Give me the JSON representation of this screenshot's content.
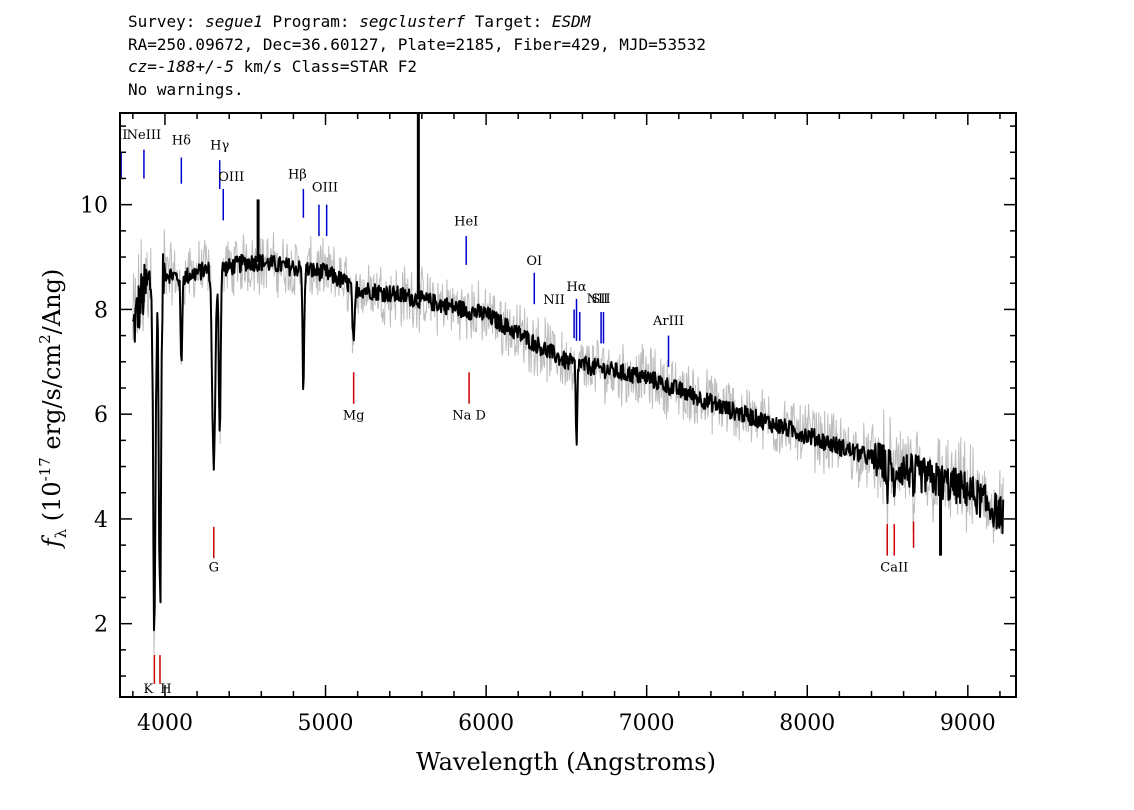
{
  "header": {
    "line1": {
      "survey_label": "Survey: ",
      "survey": "segue1",
      "program_label": " Program: ",
      "program": "segclusterf",
      "target_label": " Target: ",
      "target": "ESDM"
    },
    "line2": "RA=250.09672, Dec=36.60127, Plate=2185, Fiber=429, MJD=53532",
    "line3": {
      "cz_label": "cz=",
      "cz_value": "-188+/-5",
      "rest": " km/s Class=STAR F2"
    },
    "line4": "No warnings."
  },
  "chart_data": {
    "type": "line",
    "title": "",
    "xlabel": "Wavelength (Angstroms)",
    "ylabel_parts": {
      "f": "f",
      "sub": "λ",
      "open": " (10",
      "exp": "-17",
      "mid": " erg/s/cm",
      "exp2": "2",
      "close": "/Ang)"
    },
    "xlim": [
      3720,
      9300
    ],
    "ylim": [
      0.6,
      11.75
    ],
    "xticks": [
      4000,
      5000,
      6000,
      7000,
      8000,
      9000
    ],
    "xtick_labels": [
      "4000",
      "5000",
      "6000",
      "7000",
      "8000",
      "9000"
    ],
    "yticks": [
      2,
      4,
      6,
      8,
      10
    ],
    "ytick_labels": [
      "2",
      "4",
      "6",
      "8",
      "10"
    ],
    "colors": {
      "flux": "#000000",
      "error_band": "#bdbdbd",
      "emission": "#0000cc",
      "absorption": "#cc0000"
    },
    "continuum_x": [
      3800,
      3850,
      3900,
      4000,
      4100,
      4200,
      4300,
      4400,
      4500,
      4600,
      4800,
      5000,
      5200,
      5500,
      6000,
      6500,
      7000,
      7500,
      8000,
      8500,
      9000,
      9220
    ],
    "continuum_y": [
      7.6,
      8.2,
      8.5,
      8.7,
      8.6,
      8.7,
      8.8,
      8.8,
      8.9,
      8.9,
      8.8,
      8.7,
      8.4,
      8.25,
      7.9,
      7.0,
      6.7,
      6.1,
      5.6,
      5.05,
      4.55,
      4.05
    ],
    "absorption_features": [
      {
        "name": "CaII K",
        "wave": 3934,
        "min": 1.7,
        "width": 10
      },
      {
        "name": "CaII H",
        "wave": 3969,
        "min": 2.4,
        "width": 10
      },
      {
        "name": "Hdelta",
        "wave": 4102,
        "min": 6.9,
        "width": 7
      },
      {
        "name": "G band",
        "wave": 4304,
        "min": 5.0,
        "width": 14
      },
      {
        "name": "Hgamma",
        "wave": 4341,
        "min": 5.6,
        "width": 8
      },
      {
        "name": "Hbeta",
        "wave": 4862,
        "min": 6.4,
        "width": 7
      },
      {
        "name": "Mg",
        "wave": 5175,
        "min": 7.3,
        "width": 10
      },
      {
        "name": "Halpha",
        "wave": 6563,
        "min": 5.3,
        "width": 6
      },
      {
        "name": "CaII 8498",
        "wave": 8498,
        "min": 4.5,
        "width": 6
      },
      {
        "name": "CaII 8542",
        "wave": 8542,
        "min": 4.2,
        "width": 6
      },
      {
        "name": "CaII 8662",
        "wave": 8662,
        "min": 4.3,
        "width": 6
      }
    ],
    "spikes": [
      {
        "wave": 5578,
        "y": 11.75
      },
      {
        "wave": 4580,
        "y": 10.1
      },
      {
        "wave": 8830,
        "y": 3.3
      }
    ],
    "emission_lines": [
      {
        "label": "OII",
        "wave": 3727,
        "y_top": 11.0,
        "y_bot": 10.5,
        "label_y": 11.25,
        "label_dx": -4
      },
      {
        "label": "NeIII",
        "wave": 3869,
        "y_top": 11.05,
        "y_bot": 10.5,
        "label_y": 11.25,
        "label_dx": 0
      },
      {
        "label": "Hδ",
        "wave": 4102,
        "y_top": 10.9,
        "y_bot": 10.4,
        "label_y": 11.15,
        "label_dx": 0
      },
      {
        "label": "Hγ",
        "wave": 4341,
        "y_top": 10.85,
        "y_bot": 10.3,
        "label_y": 11.05,
        "label_dx": 0
      },
      {
        "label": "OIII",
        "wave": 4363,
        "y_top": 10.3,
        "y_bot": 9.7,
        "label_y": 10.45,
        "label_dx": 8
      },
      {
        "label": "Hβ",
        "wave": 4862,
        "y_top": 10.3,
        "y_bot": 9.75,
        "label_y": 10.5,
        "label_dx": -6
      },
      {
        "label": "OIII",
        "wave": 4959,
        "y_top": 10.0,
        "y_bot": 9.4,
        "label_y": 10.25,
        "label_dx": 6
      },
      {
        "label": "OIII",
        "wave": 5007,
        "y_top": 10.0,
        "y_bot": 9.4,
        "label_y": 10.25,
        "label_dx": -999
      },
      {
        "label": "HeI",
        "wave": 5876,
        "y_top": 9.4,
        "y_bot": 8.85,
        "label_y": 9.6,
        "label_dx": 0
      },
      {
        "label": "OI",
        "wave": 6300,
        "y_top": 8.7,
        "y_bot": 8.1,
        "label_y": 8.85,
        "label_dx": 0
      },
      {
        "label": "NII",
        "wave": 6548,
        "y_top": 8.0,
        "y_bot": 7.45,
        "label_y": 8.1,
        "label_dx": -20
      },
      {
        "label": "Hα",
        "wave": 6563,
        "y_top": 8.2,
        "y_bot": 7.4,
        "label_y": 8.35,
        "label_dx": 0
      },
      {
        "label": "NII",
        "wave": 6583,
        "y_top": 7.95,
        "y_bot": 7.4,
        "label_y": -999,
        "label_dx": 0
      },
      {
        "label": "SII",
        "wave": 6716,
        "y_top": 7.95,
        "y_bot": 7.35,
        "label_y": 8.12,
        "label_dx": 0
      },
      {
        "label": "NII",
        "wave": 6731,
        "y_top": 7.95,
        "y_bot": 7.35,
        "label_y": 8.12,
        "label_dx": -6
      },
      {
        "label": "ArIII",
        "wave": 7136,
        "y_top": 7.5,
        "y_bot": 6.9,
        "label_y": 7.7,
        "label_dx": 0
      }
    ],
    "absorption_lines": [
      {
        "label": "K",
        "wave": 3934,
        "y_top": 1.4,
        "y_bot": 0.85,
        "label_y": 0.68,
        "label_dx": -6
      },
      {
        "label": "H",
        "wave": 3969,
        "y_top": 1.4,
        "y_bot": 0.85,
        "label_y": 0.68,
        "label_dx": 6
      },
      {
        "label": "G",
        "wave": 4304,
        "y_top": 3.85,
        "y_bot": 3.25,
        "label_y": 3.0,
        "label_dx": 0
      },
      {
        "label": "Mg",
        "wave": 5175,
        "y_top": 6.8,
        "y_bot": 6.2,
        "label_y": 5.9,
        "label_dx": 0
      },
      {
        "label": "Na D",
        "wave": 5894,
        "y_top": 6.8,
        "y_bot": 6.2,
        "label_y": 5.9,
        "label_dx": 0
      },
      {
        "label": "CaII",
        "wave": 8498,
        "y_top": 3.9,
        "y_bot": 3.3,
        "label_y": -999,
        "label_dx": 0
      },
      {
        "label": "CaII",
        "wave": 8542,
        "y_top": 3.9,
        "y_bot": 3.3,
        "label_y": 3.0,
        "label_dx": 0
      },
      {
        "label": "CaII",
        "wave": 8662,
        "y_top": 3.95,
        "y_bot": 3.45,
        "label_y": -999,
        "label_dx": 0
      }
    ]
  }
}
